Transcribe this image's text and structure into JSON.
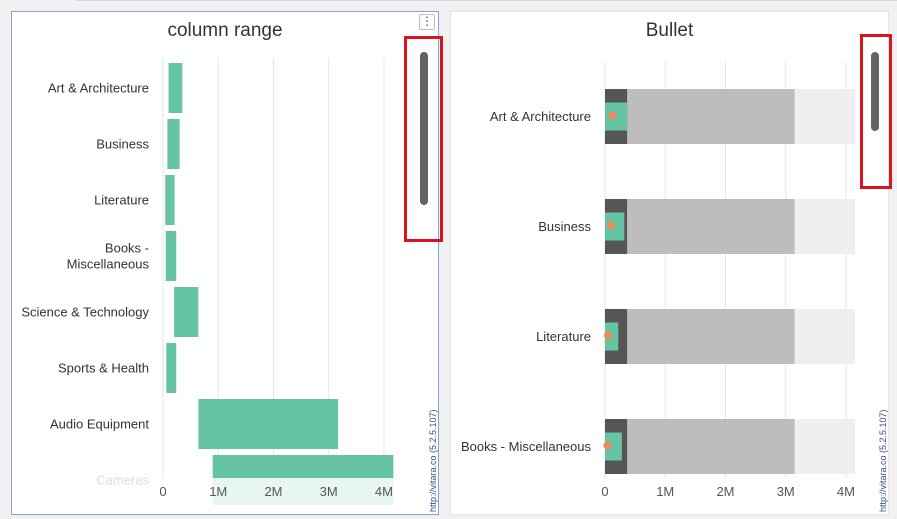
{
  "panels": {
    "left": {
      "title": "column range",
      "menu_icon": "kebab-icon",
      "credit": "http://vitara.co (5.2.5.107)"
    },
    "right": {
      "title": "Bullet",
      "credit": "http://vitara.co (5.2.5.107)"
    }
  },
  "colors": {
    "bar": "#66c3a4",
    "band_dark": "#555555",
    "band_mid": "#bdbdbd",
    "band_light": "#efefef",
    "target": "#f08a5b",
    "highlight": "#d8141e",
    "scroll": "#636363"
  },
  "chart_data": [
    {
      "type": "bar",
      "subtype": "column-range",
      "title": "column range",
      "orientation": "horizontal",
      "categories": [
        "Art & Architecture",
        "Business",
        "Literature",
        "Books - Miscellaneous",
        "Science & Technology",
        "Sports & Health",
        "Audio Equipment",
        "Cameras"
      ],
      "ranges": [
        [
          100000,
          350000
        ],
        [
          80000,
          300000
        ],
        [
          40000,
          210000
        ],
        [
          50000,
          240000
        ],
        [
          200000,
          640000
        ],
        [
          60000,
          240000
        ],
        [
          640000,
          3170000
        ],
        [
          900000,
          4170000
        ]
      ],
      "xlim": [
        0,
        4200000
      ],
      "ticks": [
        0,
        1000000,
        2000000,
        3000000,
        4000000
      ],
      "tick_labels": [
        "0",
        "1M",
        "2M",
        "3M",
        "4M"
      ],
      "grid": true
    },
    {
      "type": "bar",
      "subtype": "bullet",
      "title": "Bullet",
      "orientation": "horizontal",
      "categories": [
        "Art & Architecture",
        "Business",
        "Literature",
        "Books - Miscellaneous"
      ],
      "bands": [
        370000,
        3150000,
        4150000
      ],
      "values": [
        370000,
        320000,
        220000,
        280000
      ],
      "targets": [
        120000,
        100000,
        50000,
        40000
      ],
      "xlim": [
        0,
        4150000
      ],
      "ticks": [
        0,
        1000000,
        2000000,
        3000000,
        4000000
      ],
      "tick_labels": [
        "0",
        "1M",
        "2M",
        "3M",
        "4M"
      ],
      "grid": true
    }
  ]
}
